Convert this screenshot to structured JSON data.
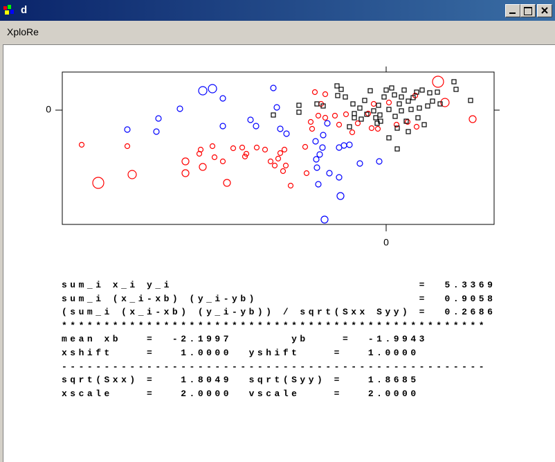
{
  "window": {
    "title": "d"
  },
  "menu": {
    "items": [
      "XploRe"
    ]
  },
  "chart_data": {
    "type": "scatter",
    "xlim": [
      -46.8,
      15.6
    ],
    "ylim": [
      -16.5,
      5.5
    ],
    "xticks": [
      0
    ],
    "yticks": [
      0
    ],
    "series": [
      {
        "color": "#0000ff",
        "marker": "circle",
        "x": [
          -26.5,
          -25.1,
          -23.6,
          -29.8,
          -32.9,
          -37.4,
          -33.2,
          -23.6,
          -19.6,
          -18.8,
          -16.3,
          -15.8,
          -15.3,
          -14.4,
          -10.2,
          -10.1,
          -9.2,
          -9.6,
          -9.1,
          -8.5,
          -6.8,
          -6.1,
          -5.3,
          -3.8,
          -1.0,
          -10.0,
          -8.2,
          -9.8,
          -6.8,
          -6.6,
          -8.9
        ],
        "values": [
          2.8,
          3.1,
          1.7,
          0.2,
          -1.2,
          -2.8,
          -3.1,
          -2.3,
          -1.4,
          -2.3,
          3.2,
          0.4,
          -2.7,
          -3.4,
          -4.5,
          -7.1,
          -5.4,
          -6.4,
          -3.6,
          -1.9,
          -5.4,
          -5.1,
          -5.0,
          -7.7,
          -7.4,
          -8.3,
          -9.1,
          -10.7,
          -9.7,
          -12.4,
          -15.8
        ],
        "sizes": [
          6,
          6,
          4,
          4,
          4,
          4,
          4,
          4,
          4,
          4,
          4,
          4,
          4,
          4,
          4,
          4,
          4,
          4,
          4,
          4,
          4,
          4,
          4,
          4,
          4,
          4,
          4,
          4,
          4,
          5,
          5
        ]
      },
      {
        "color": "#ff0000",
        "marker": "circle",
        "x": [
          -44.0,
          -41.6,
          -36.7,
          -37.4,
          -29.0,
          -29.0,
          -26.8,
          -27.0,
          -26.5,
          -25.1,
          -24.8,
          -23.6,
          -23.0,
          -22.1,
          -20.8,
          -20.4,
          -20.2,
          -18.7,
          -17.5,
          -16.7,
          -16.1,
          -15.6,
          -15.3,
          -14.7,
          -14.9,
          -14.5,
          -13.8,
          -11.7,
          -11.5,
          -10.9,
          -10.3,
          -10.7,
          -9.8,
          -9.4,
          -8.8,
          -7.4,
          -6.8,
          -5.8,
          -4.9,
          -4.1,
          -2.6,
          -2.1,
          -1.2,
          0.4,
          1.5,
          3.1,
          4.4,
          7.5,
          8.5,
          12.5,
          4.2,
          -8.8,
          -1.8
        ],
        "values": [
          -5.0,
          -10.5,
          -9.3,
          -5.2,
          -7.4,
          -9.1,
          -5.7,
          -6.3,
          -8.2,
          -5.2,
          -6.8,
          -7.4,
          -10.5,
          -5.5,
          -5.4,
          -6.7,
          -6.3,
          -5.4,
          -5.7,
          -7.4,
          -8.0,
          -7.0,
          -6.2,
          -5.7,
          -8.8,
          -8.0,
          -10.9,
          -5.3,
          -9.1,
          -1.7,
          2.6,
          -2.7,
          -0.8,
          0.9,
          -1.1,
          -0.8,
          -2.1,
          -0.6,
          -3.2,
          -1.9,
          -0.5,
          -2.6,
          -2.7,
          1.1,
          -2.1,
          -1.7,
          -2.4,
          4.1,
          1.1,
          -1.3,
          2.1,
          2.3,
          0.9
        ],
        "sizes": [
          3.5,
          8,
          6,
          3.5,
          5,
          5,
          3.5,
          3.5,
          5,
          3.5,
          3.5,
          3.5,
          5,
          3.5,
          3.5,
          3.5,
          3.5,
          3.5,
          3.5,
          3.5,
          3.5,
          3.5,
          3.5,
          3.5,
          3.5,
          3.5,
          3.5,
          3.5,
          3.5,
          3.5,
          3.5,
          3.5,
          3.5,
          3.5,
          3.5,
          3.5,
          3.5,
          3.5,
          3.5,
          3.5,
          3.5,
          3.5,
          3.5,
          3.5,
          3.5,
          3.5,
          3.5,
          8,
          6,
          5,
          3.5,
          3.5,
          3.5
        ]
      },
      {
        "color": "#000000",
        "marker": "square",
        "x": [
          -16.3,
          -12.6,
          -12.6,
          -10.0,
          -9.1,
          -7.1,
          -6.5,
          -7.0,
          -5.9,
          -4.8,
          -4.6,
          -3.8,
          -3.6,
          -3.1,
          -2.3,
          -1.8,
          -1.1,
          -1.5,
          -0.8,
          -0.3,
          0.0,
          0.4,
          0.8,
          1.2,
          1.3,
          1.6,
          1.9,
          2.2,
          2.6,
          2.9,
          3.2,
          3.6,
          3.9,
          4.4,
          4.8,
          5.2,
          5.5,
          6.0,
          6.3,
          6.7,
          7.4,
          7.8,
          9.8,
          10.1,
          12.2,
          1.6,
          0.4,
          3.2,
          -1.3,
          -5.3,
          -4.6,
          2.2,
          4.6,
          -2.8,
          -0.9
        ],
        "values": [
          -0.7,
          0.7,
          -0.3,
          0.9,
          0.6,
          3.5,
          3.0,
          2.1,
          1.9,
          0.9,
          -0.5,
          0.3,
          -1.3,
          1.4,
          2.8,
          -0.1,
          0.7,
          -1.1,
          -1.6,
          1.9,
          2.9,
          0.1,
          3.2,
          2.2,
          -0.9,
          -2.6,
          0.9,
          -0.1,
          2.9,
          -1.6,
          1.3,
          0.1,
          1.8,
          2.6,
          0.3,
          2.9,
          -2.1,
          0.6,
          2.5,
          1.3,
          2.6,
          0.9,
          4.1,
          3.0,
          1.4,
          -5.6,
          -4.0,
          -3.1,
          -1.9,
          -2.4,
          -1.1,
          1.9,
          -1.1,
          -0.6,
          -0.7
        ]
      }
    ]
  },
  "output": {
    "lines": [
      "sum_i x_i y_i                             =  5.3369",
      "sum_i (x_i-xb) (y_i-yb)                   =  0.9058",
      "(sum_i (x_i-xb) (y_i-yb)) / sqrt(Sxx Syy) =  0.2686",
      "**************************************************",
      "mean xb   =  -2.1997       yb    =  -1.9943",
      "xshift    =   1.0000  yshift    =   1.0000",
      "--------------------------------------------------",
      "sqrt(Sxx) =   1.8049  sqrt(Syy) =   1.8685",
      "xscale    =   2.0000  vscale    =   2.0000"
    ]
  }
}
